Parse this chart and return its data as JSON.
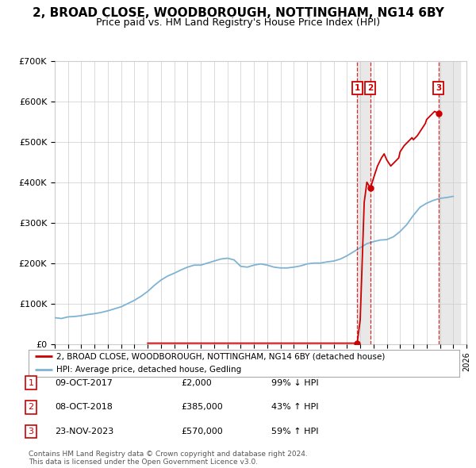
{
  "title": "2, BROAD CLOSE, WOODBOROUGH, NOTTINGHAM, NG14 6BY",
  "subtitle": "Price paid vs. HM Land Registry's House Price Index (HPI)",
  "title_fontsize": 11,
  "subtitle_fontsize": 9,
  "ylim": [
    0,
    700000
  ],
  "yticks": [
    0,
    100000,
    200000,
    300000,
    400000,
    500000,
    600000,
    700000
  ],
  "ytick_labels": [
    "£0",
    "£100K",
    "£200K",
    "£300K",
    "£400K",
    "£500K",
    "£600K",
    "£700K"
  ],
  "xlim": [
    1995,
    2026
  ],
  "hpi_color": "#7fb3d3",
  "price_color": "#cc0000",
  "shade_color": "#e8e8e8",
  "transactions": [
    {
      "date_num": 2017.77,
      "price": 2000,
      "label": "1"
    },
    {
      "date_num": 2018.77,
      "price": 385000,
      "label": "2"
    },
    {
      "date_num": 2023.9,
      "price": 570000,
      "label": "3"
    }
  ],
  "legend_entries": [
    "2, BROAD CLOSE, WOODBOROUGH, NOTTINGHAM, NG14 6BY (detached house)",
    "HPI: Average price, detached house, Gedling"
  ],
  "table_rows": [
    [
      "1",
      "09-OCT-2017",
      "£2,000",
      "99% ↓ HPI"
    ],
    [
      "2",
      "08-OCT-2018",
      "£385,000",
      "43% ↑ HPI"
    ],
    [
      "3",
      "23-NOV-2023",
      "£570,000",
      "59% ↑ HPI"
    ]
  ],
  "footnote": "Contains HM Land Registry data © Crown copyright and database right 2024.\nThis data is licensed under the Open Government Licence v3.0.",
  "bg_color": "#ffffff",
  "grid_color": "#cccccc",
  "hpi_points": [
    [
      1995.0,
      65000
    ],
    [
      1995.5,
      63000
    ],
    [
      1996.0,
      67000
    ],
    [
      1996.5,
      68000
    ],
    [
      1997.0,
      70000
    ],
    [
      1997.5,
      73000
    ],
    [
      1998.0,
      75000
    ],
    [
      1998.5,
      78000
    ],
    [
      1999.0,
      82000
    ],
    [
      1999.5,
      87000
    ],
    [
      2000.0,
      92000
    ],
    [
      2000.5,
      100000
    ],
    [
      2001.0,
      108000
    ],
    [
      2001.5,
      118000
    ],
    [
      2002.0,
      130000
    ],
    [
      2002.5,
      145000
    ],
    [
      2003.0,
      158000
    ],
    [
      2003.5,
      168000
    ],
    [
      2004.0,
      175000
    ],
    [
      2004.5,
      183000
    ],
    [
      2005.0,
      190000
    ],
    [
      2005.5,
      195000
    ],
    [
      2006.0,
      195000
    ],
    [
      2006.5,
      200000
    ],
    [
      2007.0,
      205000
    ],
    [
      2007.5,
      210000
    ],
    [
      2008.0,
      212000
    ],
    [
      2008.5,
      208000
    ],
    [
      2009.0,
      192000
    ],
    [
      2009.5,
      190000
    ],
    [
      2010.0,
      195000
    ],
    [
      2010.5,
      198000
    ],
    [
      2011.0,
      195000
    ],
    [
      2011.5,
      190000
    ],
    [
      2012.0,
      188000
    ],
    [
      2012.5,
      188000
    ],
    [
      2013.0,
      190000
    ],
    [
      2013.5,
      193000
    ],
    [
      2014.0,
      198000
    ],
    [
      2014.5,
      200000
    ],
    [
      2015.0,
      200000
    ],
    [
      2015.5,
      203000
    ],
    [
      2016.0,
      205000
    ],
    [
      2016.5,
      210000
    ],
    [
      2017.0,
      218000
    ],
    [
      2017.5,
      228000
    ],
    [
      2018.0,
      238000
    ],
    [
      2018.5,
      248000
    ],
    [
      2019.0,
      253000
    ],
    [
      2019.5,
      257000
    ],
    [
      2020.0,
      258000
    ],
    [
      2020.5,
      265000
    ],
    [
      2021.0,
      278000
    ],
    [
      2021.5,
      295000
    ],
    [
      2022.0,
      318000
    ],
    [
      2022.5,
      338000
    ],
    [
      2023.0,
      348000
    ],
    [
      2023.5,
      355000
    ],
    [
      2024.0,
      360000
    ],
    [
      2024.5,
      362000
    ],
    [
      2025.0,
      365000
    ]
  ],
  "price_line_points": [
    [
      2002.0,
      2000
    ],
    [
      2003.0,
      2000
    ],
    [
      2004.0,
      2000
    ],
    [
      2005.0,
      2000
    ],
    [
      2006.0,
      2000
    ],
    [
      2007.0,
      2000
    ],
    [
      2008.0,
      2000
    ],
    [
      2009.0,
      2000
    ],
    [
      2010.0,
      2000
    ],
    [
      2011.0,
      2000
    ],
    [
      2012.0,
      2000
    ],
    [
      2013.0,
      2000
    ],
    [
      2014.0,
      2000
    ],
    [
      2015.0,
      2000
    ],
    [
      2016.0,
      2000
    ],
    [
      2017.0,
      2000
    ],
    [
      2017.77,
      2000
    ],
    [
      2017.77,
      2000
    ],
    [
      2018.0,
      60000
    ],
    [
      2018.3,
      350000
    ],
    [
      2018.5,
      400000
    ],
    [
      2018.77,
      385000
    ],
    [
      2018.77,
      385000
    ],
    [
      2019.0,
      410000
    ],
    [
      2019.3,
      440000
    ],
    [
      2019.6,
      460000
    ],
    [
      2019.8,
      470000
    ],
    [
      2020.0,
      455000
    ],
    [
      2020.3,
      440000
    ],
    [
      2020.6,
      450000
    ],
    [
      2020.9,
      460000
    ],
    [
      2021.0,
      475000
    ],
    [
      2021.3,
      490000
    ],
    [
      2021.6,
      500000
    ],
    [
      2021.9,
      510000
    ],
    [
      2022.0,
      505000
    ],
    [
      2022.3,
      515000
    ],
    [
      2022.6,
      530000
    ],
    [
      2022.9,
      545000
    ],
    [
      2023.0,
      555000
    ],
    [
      2023.3,
      565000
    ],
    [
      2023.6,
      575000
    ],
    [
      2023.9,
      570000
    ]
  ]
}
